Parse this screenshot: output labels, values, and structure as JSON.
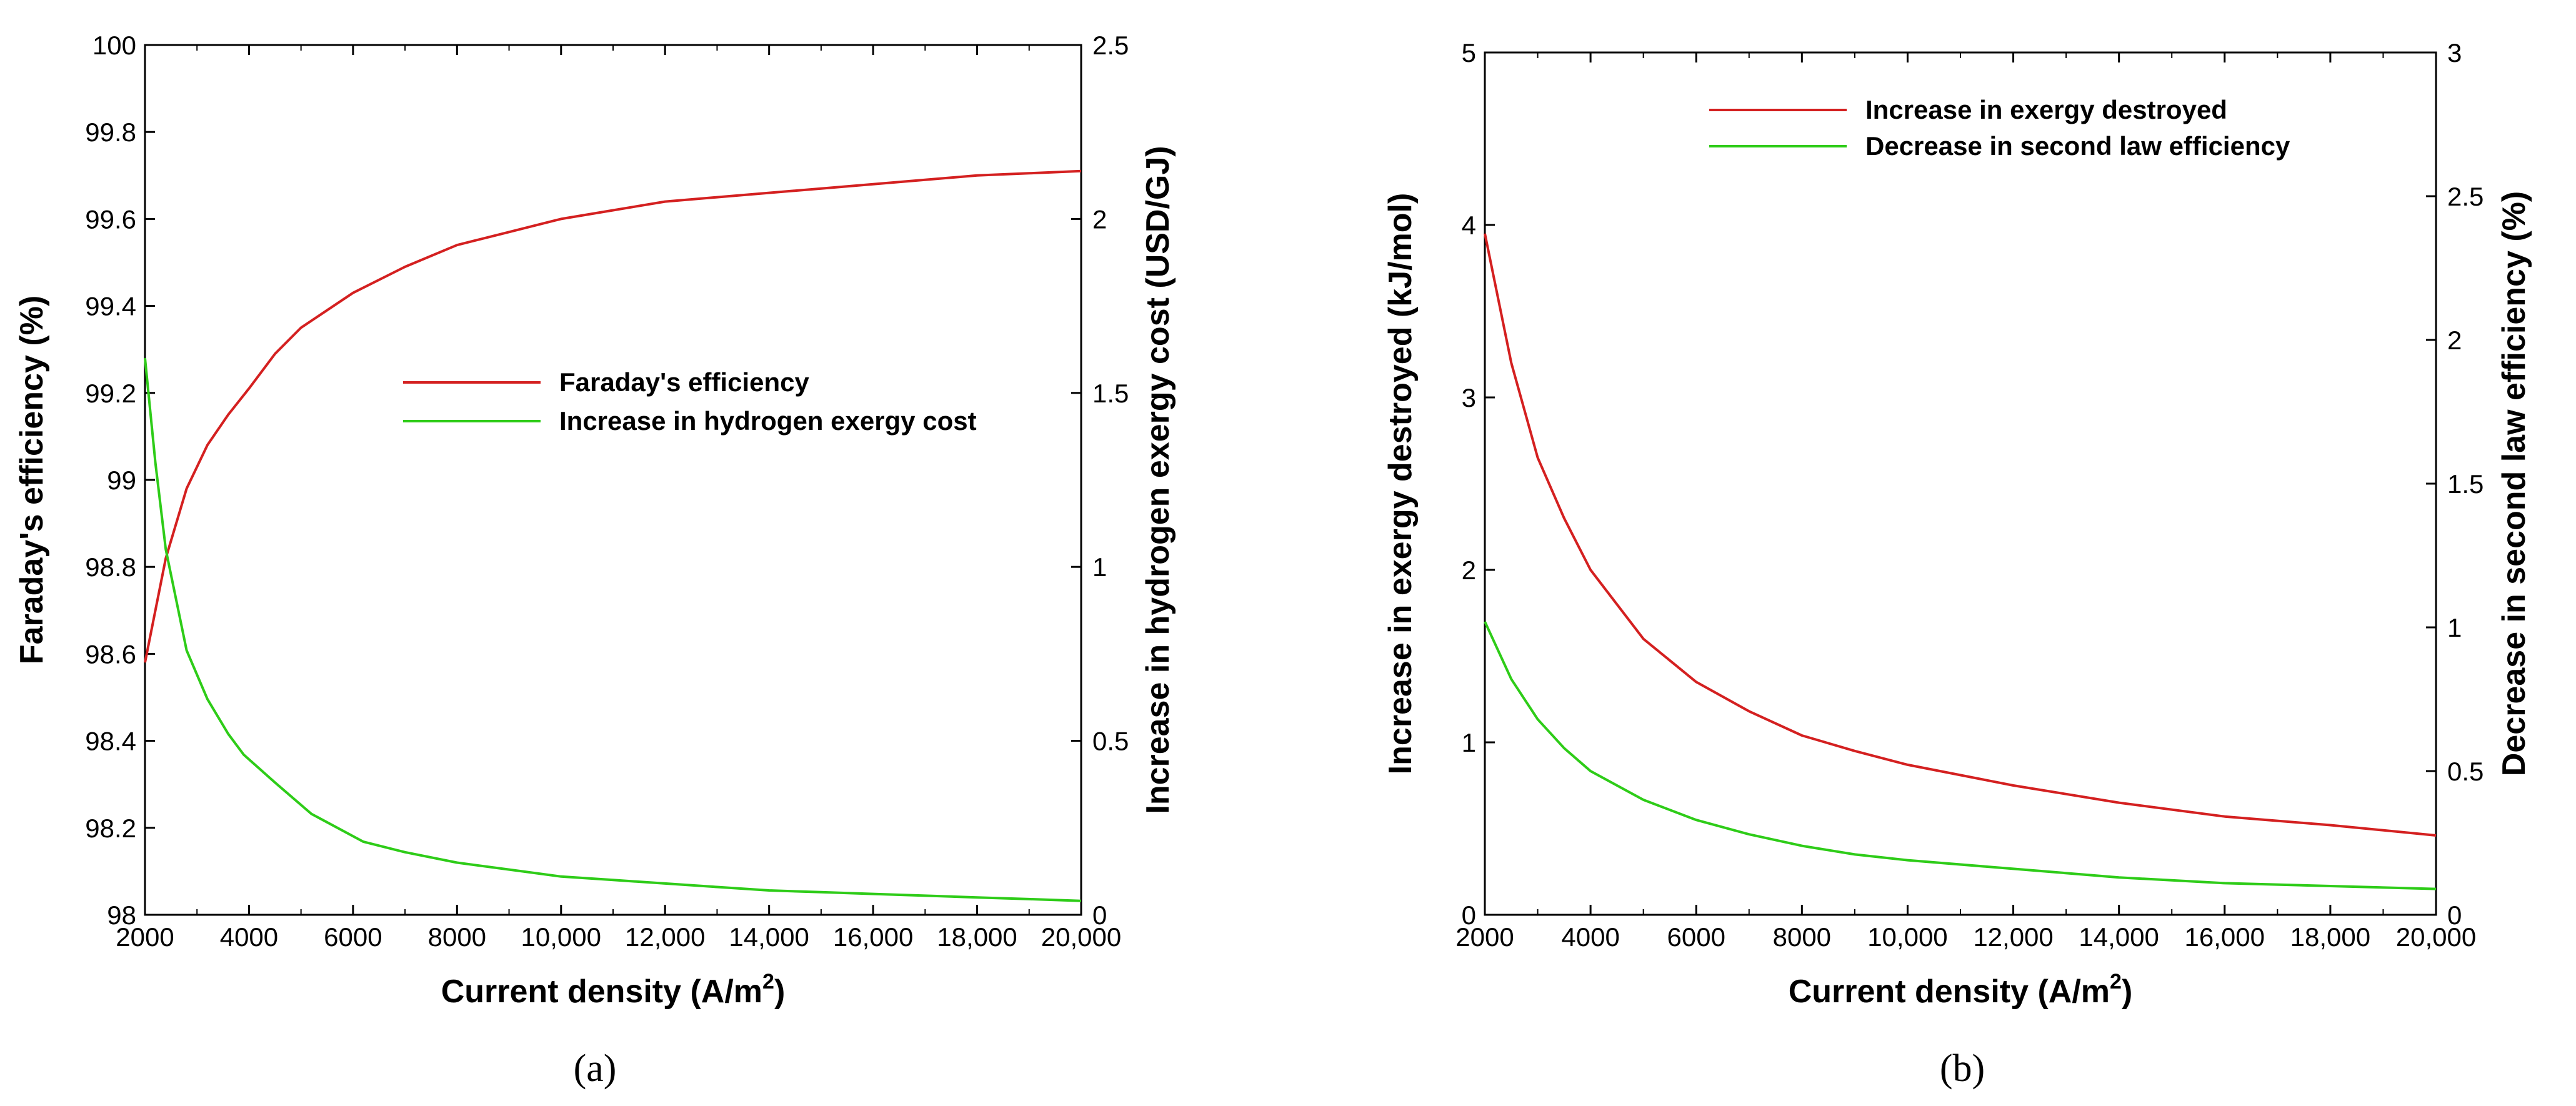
{
  "figure": {
    "panel_labels": [
      "(a)",
      "(b)"
    ]
  },
  "chart_data": [
    {
      "type": "line",
      "panel": "(a)",
      "xlabel": "Current density (A/m",
      "xlabel_sup": "2",
      "xlabel_close": ")",
      "ylabel_left": "Faraday's efficiency (%)",
      "ylabel_right": "Increase in hydrogen exergy cost (USD/GJ)",
      "xlim": [
        2000,
        20000
      ],
      "ylim_left": [
        98,
        100
      ],
      "ylim_right": [
        0,
        2.5
      ],
      "x_ticks": [
        "2000",
        "4000",
        "6000",
        "8000",
        "10,000",
        "12,000",
        "14,000",
        "16,000",
        "18,000",
        "20,000"
      ],
      "y_left_ticks": [
        "98",
        "98.2",
        "98.4",
        "98.6",
        "98.8",
        "99",
        "99.2",
        "99.4",
        "99.6",
        "99.8",
        "100"
      ],
      "y_right_ticks": [
        "0",
        "0.5",
        "1",
        "1.5",
        "2",
        "2.5"
      ],
      "legend_position": "center-right",
      "series": [
        {
          "name": "Faraday's efficiency",
          "axis": "left",
          "color": "#d42020",
          "x": [
            2000,
            2400,
            2800,
            3200,
            3600,
            4000,
            4500,
            5000,
            5500,
            6000,
            7000,
            8000,
            9000,
            10000,
            11000,
            12000,
            13000,
            14000,
            15000,
            16000,
            17000,
            18000,
            19000,
            20000
          ],
          "y": [
            98.58,
            98.82,
            98.98,
            99.08,
            99.15,
            99.21,
            99.29,
            99.35,
            99.39,
            99.43,
            99.49,
            99.54,
            99.57,
            99.6,
            99.62,
            99.64,
            99.65,
            99.66,
            99.67,
            99.68,
            99.69,
            99.7,
            99.705,
            99.71
          ]
        },
        {
          "name": " Increase in hydrogen exergy cost",
          "axis": "right",
          "color": "#2ecc18",
          "x": [
            2000,
            2200,
            2400,
            2800,
            3200,
            3600,
            3900,
            4500,
            5200,
            6200,
            7000,
            8000,
            9000,
            10000,
            11000,
            12000,
            13000,
            14000,
            15000,
            16000,
            17000,
            18000,
            19000,
            20000
          ],
          "y": [
            1.6,
            1.3,
            1.05,
            0.76,
            0.62,
            0.52,
            0.46,
            0.38,
            0.29,
            0.21,
            0.18,
            0.15,
            0.13,
            0.11,
            0.1,
            0.09,
            0.08,
            0.07,
            0.065,
            0.06,
            0.055,
            0.05,
            0.045,
            0.04
          ]
        }
      ]
    },
    {
      "type": "line",
      "panel": "(b)",
      "xlabel": "Current density (A/m",
      "xlabel_sup": "2",
      "xlabel_close": ")",
      "ylabel_left": "Increase in exergy destroyed (kJ/mol)",
      "ylabel_right": "Decrease in second law efficiency (%)",
      "xlim": [
        2000,
        20000
      ],
      "ylim_left": [
        0,
        5
      ],
      "ylim_right": [
        0,
        3
      ],
      "x_ticks": [
        "2000",
        "4000",
        "6000",
        "8000",
        "10,000",
        "12,000",
        "14,000",
        "16,000",
        "18,000",
        "20,000"
      ],
      "y_left_ticks": [
        "0",
        "1",
        "2",
        "3",
        "4",
        "5"
      ],
      "y_right_ticks": [
        "0",
        "0.5",
        "1",
        "1.5",
        "2",
        "2.5",
        "3"
      ],
      "legend_position": "top-center",
      "series": [
        {
          "name": "Increase in exergy destroyed",
          "axis": "left",
          "color": "#d42020",
          "x": [
            2000,
            2500,
            3000,
            3500,
            4000,
            5000,
            6000,
            7000,
            8000,
            9000,
            10000,
            12000,
            14000,
            16000,
            18000,
            20000
          ],
          "y": [
            3.95,
            3.2,
            2.65,
            2.3,
            2.0,
            1.6,
            1.35,
            1.18,
            1.04,
            0.95,
            0.87,
            0.75,
            0.65,
            0.57,
            0.52,
            0.46
          ]
        },
        {
          "name": "Decrease in second law efficiency",
          "axis": "right",
          "color": "#2ecc18",
          "x": [
            2000,
            2500,
            3000,
            3500,
            4000,
            5000,
            6000,
            7000,
            8000,
            9000,
            10000,
            12000,
            14000,
            16000,
            18000,
            20000
          ],
          "y": [
            1.02,
            0.82,
            0.68,
            0.58,
            0.5,
            0.4,
            0.33,
            0.28,
            0.24,
            0.21,
            0.19,
            0.16,
            0.13,
            0.11,
            0.1,
            0.09
          ]
        }
      ]
    }
  ]
}
